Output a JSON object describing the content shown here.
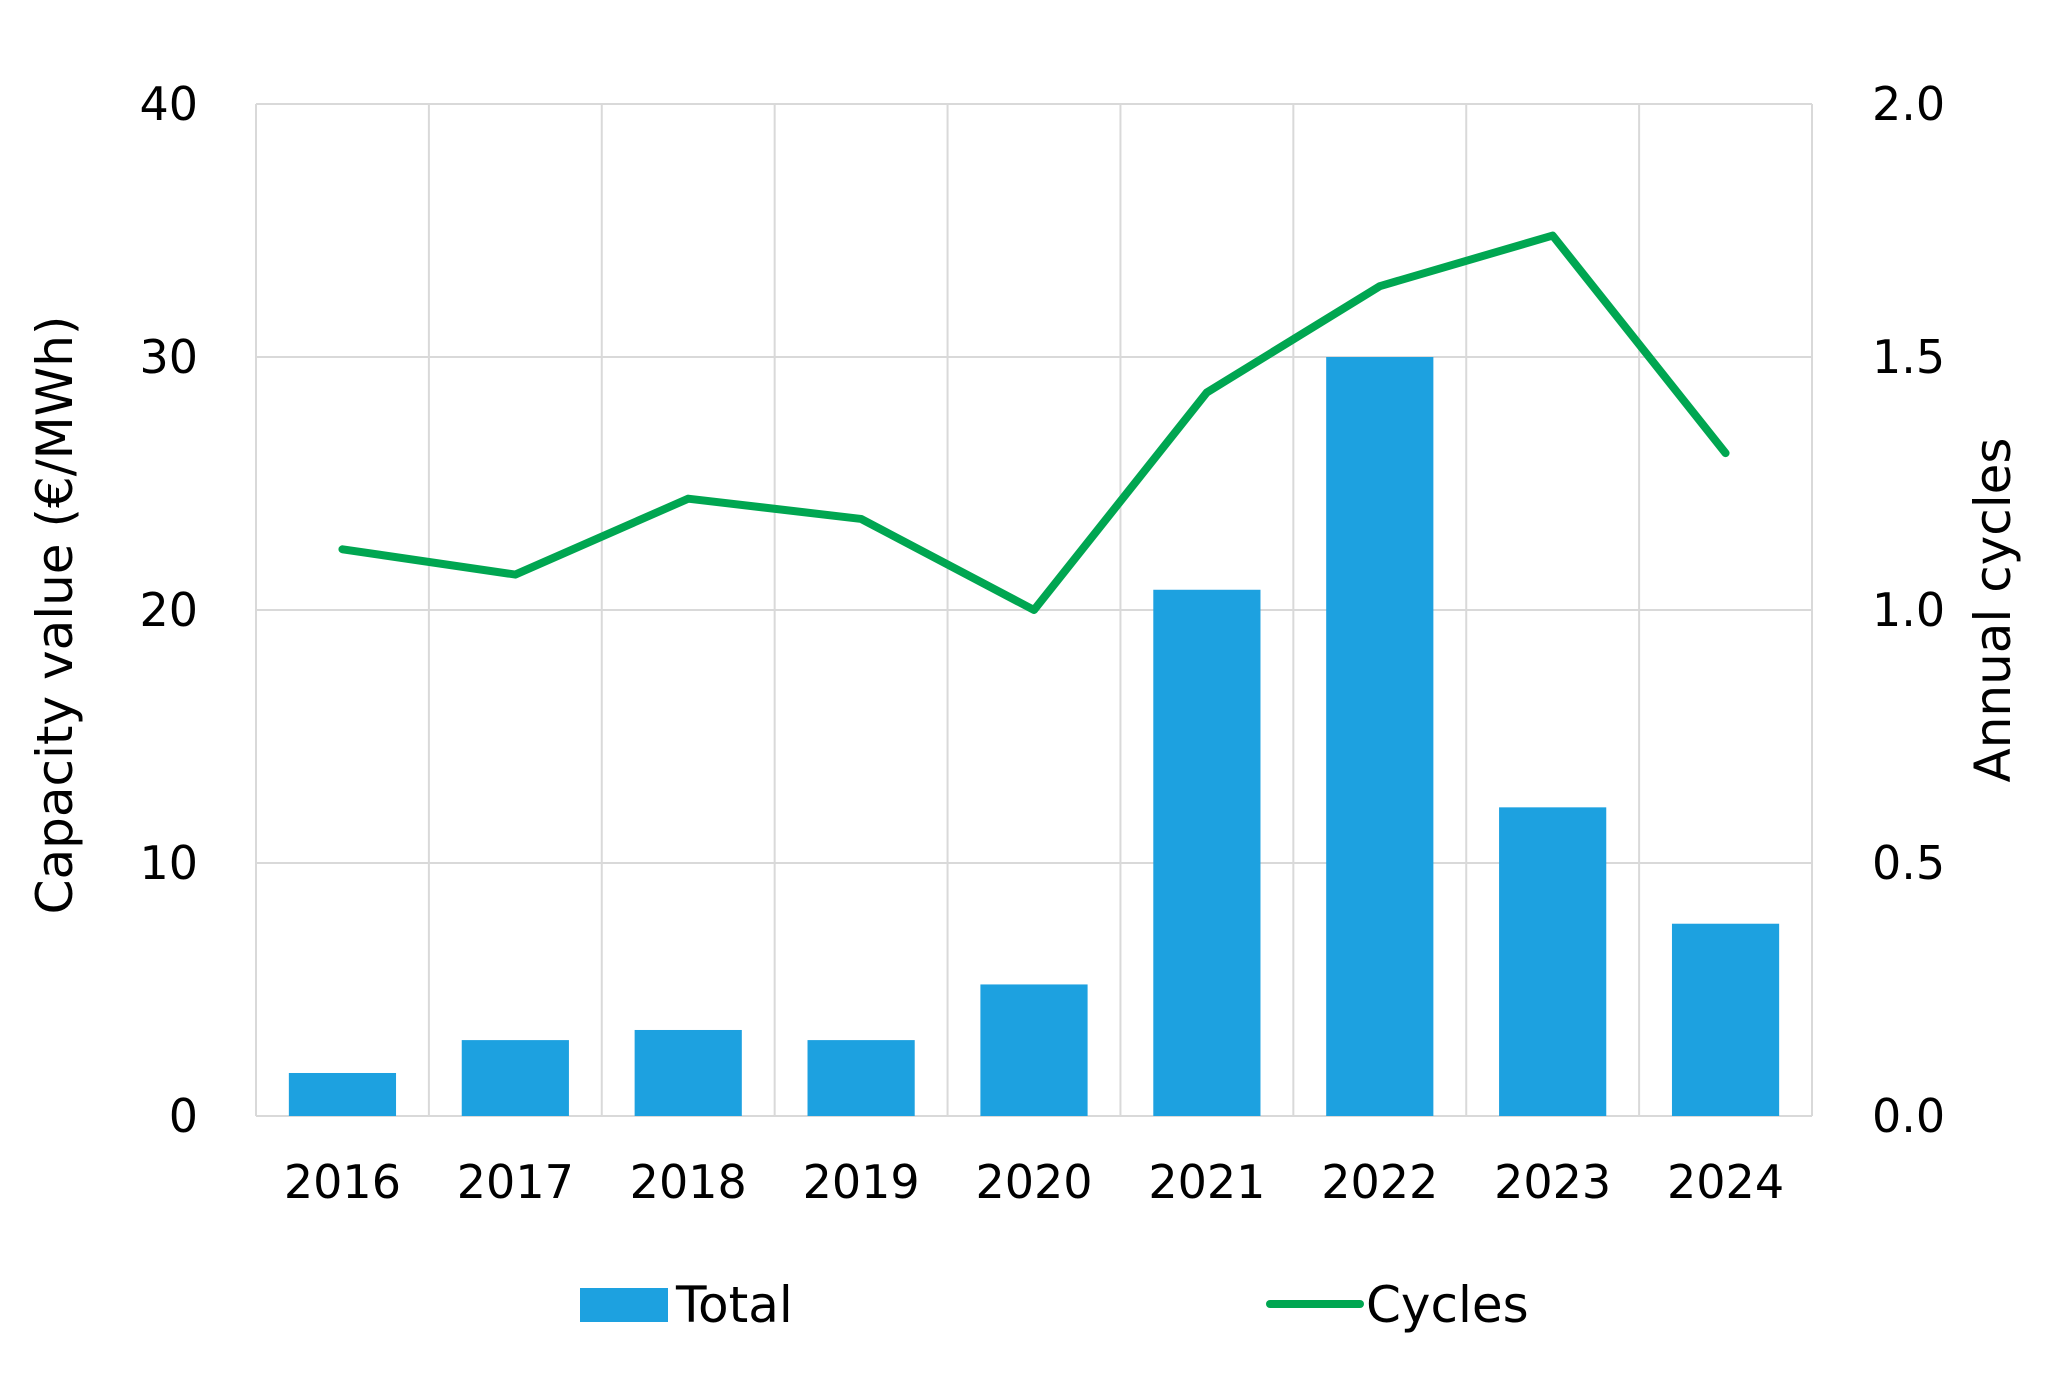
{
  "chart_data": {
    "type": "bar",
    "categories": [
      "2016",
      "2017",
      "2018",
      "2019",
      "2020",
      "2021",
      "2022",
      "2023",
      "2024"
    ],
    "series": [
      {
        "name": "Total",
        "type": "bar",
        "axis": "left",
        "color": "#1da1e0",
        "values": [
          1.7,
          3.0,
          3.4,
          3.0,
          5.2,
          20.8,
          30.0,
          12.2,
          7.6
        ]
      },
      {
        "name": "Cycles",
        "type": "line",
        "axis": "right",
        "color": "#00a651",
        "values": [
          1.12,
          1.07,
          1.22,
          1.18,
          1.0,
          1.43,
          1.64,
          1.74,
          1.31
        ]
      }
    ],
    "ylabel": "Capacity value (€/MWh)",
    "y2label": "Annual cycles",
    "ylim": [
      0,
      40
    ],
    "y2lim": [
      0,
      2.0
    ],
    "yticks": [
      "0",
      "10",
      "20",
      "30",
      "40"
    ],
    "y2ticks": [
      "0.0",
      "0.5",
      "1.0",
      "1.5",
      "2.0"
    ],
    "grid": true,
    "grid_color": "#d9d9d9",
    "legend_position": "bottom"
  }
}
